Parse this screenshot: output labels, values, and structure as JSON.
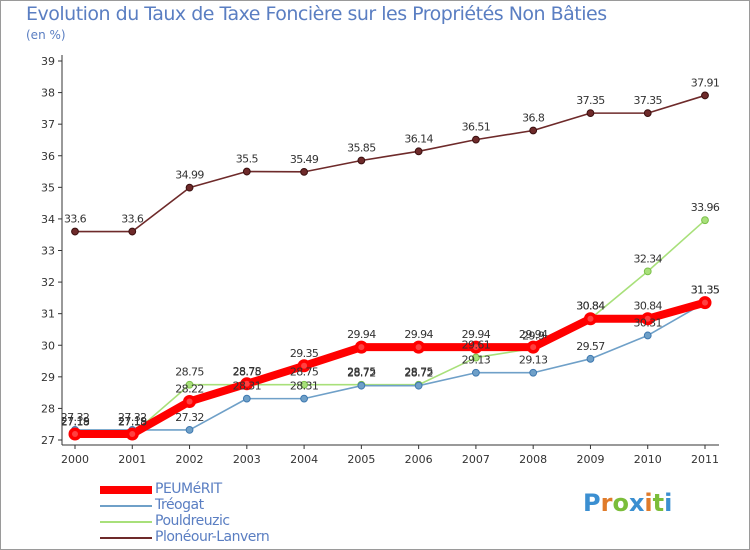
{
  "title": "Evolution du Taux de Taxe Foncière sur les Propriétés Non Bâties",
  "subtitle": "(en %)",
  "logo_text": "Proxiti",
  "chart_data": {
    "type": "line",
    "x": [
      "2000",
      "2001",
      "2002",
      "2003",
      "2004",
      "2005",
      "2006",
      "2007",
      "2008",
      "2009",
      "2010",
      "2011"
    ],
    "ylim": [
      27,
      39
    ],
    "yticks": [
      27,
      28,
      29,
      30,
      31,
      32,
      33,
      34,
      35,
      36,
      37,
      38,
      39
    ],
    "grid": false,
    "legend_position": "bottom-left",
    "series": [
      {
        "name": "PEUMéRIT",
        "color": "#ff0000",
        "values": [
          27.19,
          27.19,
          28.22,
          28.78,
          29.35,
          29.94,
          29.94,
          29.94,
          29.94,
          30.84,
          30.84,
          31.35
        ]
      },
      {
        "name": "Tréogat",
        "color": "#6fa0c8",
        "values": [
          27.32,
          27.32,
          27.32,
          28.31,
          28.31,
          28.72,
          28.72,
          29.13,
          29.13,
          29.57,
          30.31,
          31.35
        ]
      },
      {
        "name": "Pouldreuzic",
        "color": "#a8e07a",
        "values": [
          27.18,
          27.18,
          28.75,
          28.75,
          28.75,
          28.75,
          28.75,
          29.61,
          29.9,
          30.84,
          32.34,
          33.96
        ]
      },
      {
        "name": "Plonéour-Lanvern",
        "color": "#6e2a2a",
        "values": [
          33.6,
          33.6,
          34.99,
          35.5,
          35.49,
          35.85,
          36.14,
          36.51,
          36.8,
          37.35,
          37.35,
          37.91
        ]
      }
    ]
  }
}
